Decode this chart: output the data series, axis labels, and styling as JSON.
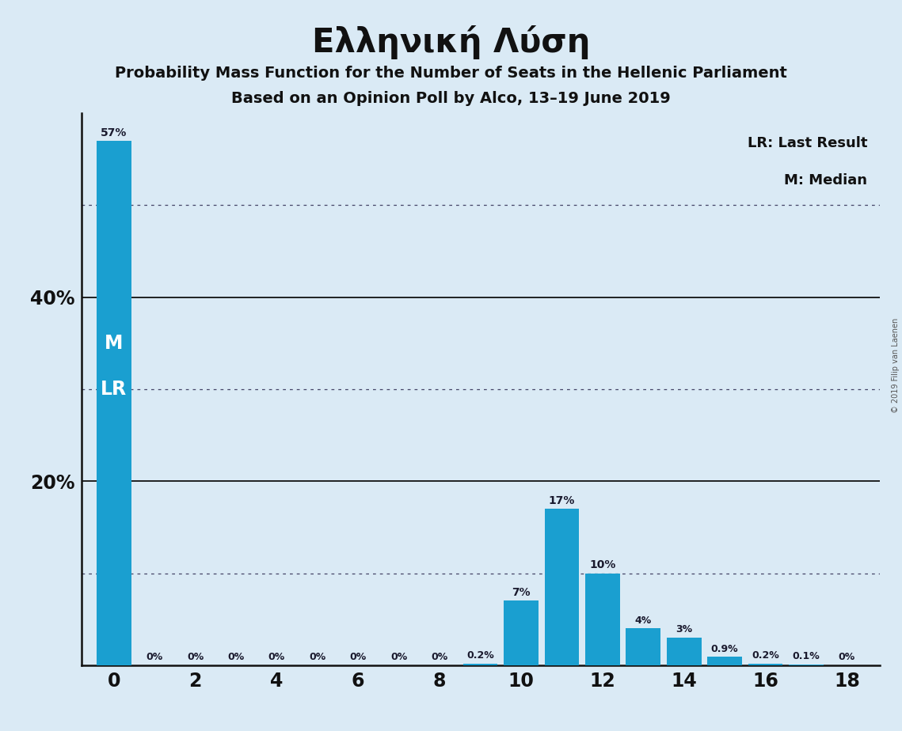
{
  "title": "Ελληνική Λύση",
  "subtitle1": "Probability Mass Function for the Number of Seats in the Hellenic Parliament",
  "subtitle2": "Based on an Opinion Poll by Alco, 13–19 June 2019",
  "copyright": "© 2019 Filip van Laenen",
  "legend_lr": "LR: Last Result",
  "legend_m": "M: Median",
  "background_color": "#daeaf5",
  "bar_color": "#1a9fd0",
  "seats": [
    0,
    1,
    2,
    3,
    4,
    5,
    6,
    7,
    8,
    9,
    10,
    11,
    12,
    13,
    14,
    15,
    16,
    17,
    18
  ],
  "probabilities": [
    57,
    0,
    0,
    0,
    0,
    0,
    0,
    0,
    0,
    0.2,
    7,
    17,
    10,
    4,
    3,
    0.9,
    0.2,
    0.1,
    0
  ],
  "labels": [
    "57%",
    "0%",
    "0%",
    "0%",
    "0%",
    "0%",
    "0%",
    "0%",
    "0%",
    "0.2%",
    "7%",
    "17%",
    "10%",
    "4%",
    "3%",
    "0.9%",
    "0.2%",
    "0.1%",
    "0%"
  ],
  "median_seat": 0,
  "last_result_seat": 0,
  "solid_lines": [
    20,
    40
  ],
  "dotted_lines": [
    10,
    30,
    50
  ],
  "ylim": [
    0,
    60
  ],
  "xlim": [
    -0.8,
    18.8
  ],
  "ytick_positions": [
    20,
    40
  ],
  "ytick_labels": [
    "20%",
    "40%"
  ],
  "xtick_positions": [
    0,
    2,
    4,
    6,
    8,
    10,
    12,
    14,
    16,
    18
  ]
}
